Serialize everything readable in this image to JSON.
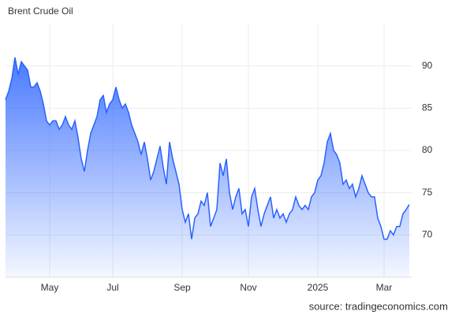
{
  "chart_data": {
    "type": "area",
    "title": "Brent Crude Oil",
    "source": "source: tradingeconomics.com",
    "categories": [
      null,
      null,
      null,
      null,
      null,
      null,
      null,
      null,
      null,
      null,
      null,
      null,
      null,
      null,
      "May",
      null,
      null,
      null,
      null,
      null,
      null,
      null,
      null,
      null,
      null,
      null,
      null,
      null,
      null,
      null,
      null,
      null,
      null,
      null,
      "Jul",
      null,
      null,
      null,
      null,
      null,
      null,
      null,
      null,
      null,
      null,
      null,
      null,
      null,
      null,
      null,
      null,
      null,
      null,
      null,
      null,
      null,
      "Sep",
      null,
      null,
      null,
      null,
      null,
      null,
      null,
      null,
      null,
      null,
      null,
      null,
      null,
      null,
      null,
      null,
      null,
      null,
      null,
      null,
      "Nov",
      null,
      null,
      null,
      null,
      null,
      null,
      null,
      null,
      null,
      null,
      null,
      null,
      null,
      null,
      null,
      null,
      null,
      null,
      null,
      null,
      null,
      "2025",
      null,
      null,
      null,
      null,
      null,
      null,
      null,
      null,
      null,
      null,
      null,
      null,
      null,
      null,
      null,
      null,
      null,
      null,
      null,
      null,
      "Mar",
      null,
      null,
      null,
      null,
      null,
      null,
      null,
      null
    ],
    "values": [
      86,
      87,
      88.5,
      91,
      89,
      90.5,
      90,
      89.5,
      87.5,
      87.5,
      88,
      87,
      85.5,
      83.5,
      83,
      83.5,
      83.5,
      82.5,
      83,
      84,
      83,
      82.5,
      83.5,
      81.5,
      79,
      77.5,
      80,
      82,
      83,
      84,
      86,
      86.5,
      84.5,
      85.5,
      86,
      87.5,
      86,
      85,
      85.5,
      84.5,
      83,
      82,
      81,
      79.5,
      81,
      79,
      76.5,
      77.5,
      79,
      80.5,
      78,
      76,
      81,
      79,
      77.5,
      76,
      73,
      71.5,
      72.5,
      69.5,
      72,
      72.5,
      74,
      73.5,
      75,
      71,
      72,
      73,
      78.5,
      77,
      79,
      75,
      73,
      74.5,
      75.5,
      72.5,
      73,
      71,
      74.5,
      75.5,
      73,
      71,
      72.5,
      73.5,
      74.5,
      72,
      73,
      72,
      72.5,
      71.5,
      72.5,
      73,
      74.5,
      73.5,
      73,
      73.5,
      73,
      74.5,
      75,
      76.5,
      77,
      78.5,
      81,
      82,
      80,
      79.5,
      78.5,
      76,
      76.5,
      75.5,
      76,
      74.5,
      75.5,
      77,
      76,
      75,
      74.5,
      74.5,
      72,
      71,
      69.5,
      69.5,
      70.5,
      70,
      71,
      71,
      72.5,
      73,
      73.6
    ],
    "color": "#2962ff",
    "ylim": [
      65,
      95
    ],
    "yticks": [
      70,
      75,
      80,
      85,
      90
    ],
    "grid": true
  }
}
